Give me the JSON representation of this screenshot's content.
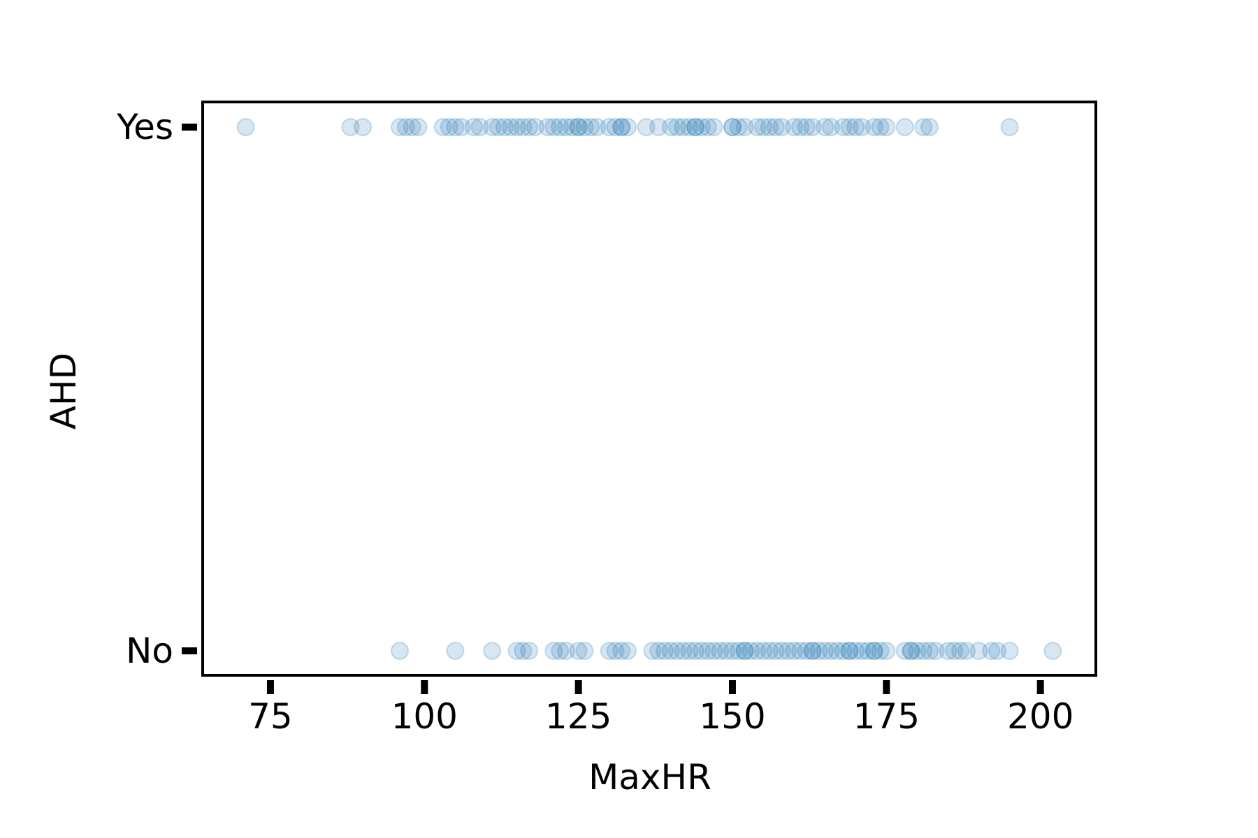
{
  "chart_data": {
    "type": "scatter",
    "title": "",
    "xlabel": "MaxHR",
    "ylabel": "AHD",
    "xlim": [
      64,
      209
    ],
    "xticks": [
      75,
      100,
      125,
      150,
      175,
      200
    ],
    "xtick_labels": [
      "75",
      "100",
      "125",
      "150",
      "175",
      "200"
    ],
    "yticks": [
      0,
      1
    ],
    "ytick_labels": [
      "No",
      "Yes"
    ],
    "grid": false,
    "legend": "none",
    "marker_color": "#1f77b4",
    "marker_alpha": 0.18,
    "series": [
      {
        "y": 1,
        "x": [
          71,
          88,
          90,
          96,
          97,
          98,
          99,
          103,
          104,
          105,
          106,
          108,
          109,
          111,
          112,
          113,
          114,
          115,
          116,
          117,
          118,
          120,
          121,
          122,
          123,
          124,
          125,
          125,
          126,
          127,
          128,
          130,
          131,
          132,
          132,
          133,
          136,
          138,
          140,
          141,
          142,
          143,
          144,
          144,
          145,
          146,
          147,
          150,
          150,
          151,
          152,
          154,
          155,
          156,
          157,
          158,
          160,
          161,
          162,
          163,
          165,
          166,
          168,
          169,
          170,
          171,
          173,
          174,
          175,
          178,
          181,
          182,
          195
        ]
      },
      {
        "y": 0,
        "x": [
          96,
          105,
          111,
          115,
          116,
          117,
          121,
          122,
          123,
          125,
          126,
          130,
          131,
          132,
          133,
          137,
          138,
          139,
          140,
          141,
          142,
          143,
          144,
          145,
          146,
          147,
          148,
          149,
          150,
          151,
          152,
          152,
          153,
          154,
          155,
          156,
          157,
          158,
          159,
          160,
          161,
          162,
          163,
          163,
          164,
          165,
          166,
          167,
          168,
          169,
          169,
          170,
          171,
          172,
          173,
          173,
          174,
          175,
          178,
          179,
          179,
          180,
          181,
          182,
          183,
          185,
          186,
          187,
          188,
          190,
          192,
          193,
          195,
          202
        ]
      }
    ]
  }
}
